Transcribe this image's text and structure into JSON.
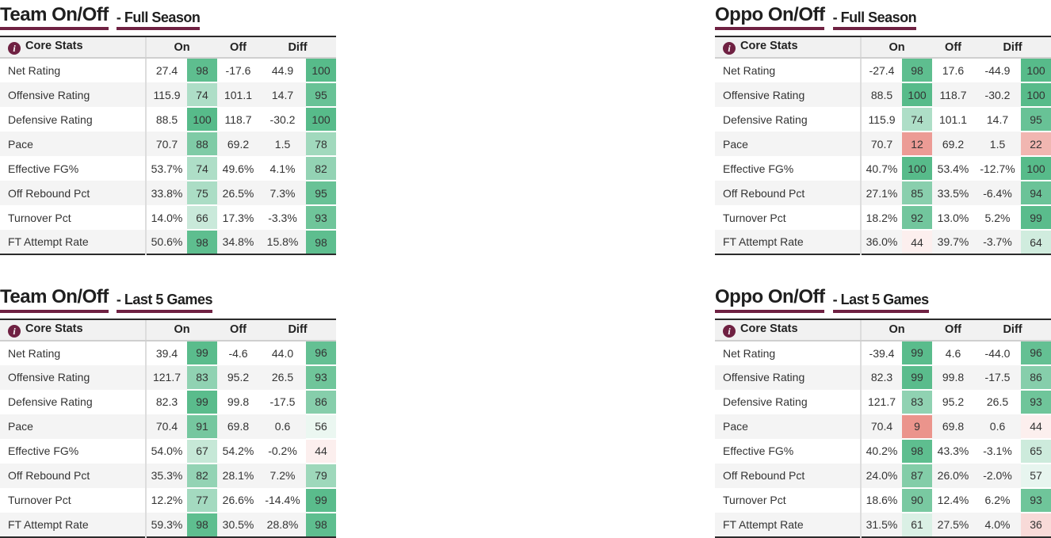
{
  "colors": {
    "accent_maroon": "#6f2142",
    "scale_positive_end": "#57bb8a",
    "scale_negative_end": "#e67c73",
    "scale_midpoint": "#ffffff",
    "header_bg": "#f1f1f1",
    "row_stripe": "#f4f4f4",
    "table_border_dark": "#2b2b2b"
  },
  "columns": {
    "info_glyph": "i",
    "stats": "Core Stats",
    "on": "On",
    "off": "Off",
    "diff": "Diff"
  },
  "tables": [
    {
      "title_main": "Team On/Off",
      "title_sub": "- Full Season",
      "rows": [
        {
          "name": "Net Rating",
          "on": "27.4",
          "on_pct": 98,
          "off": "-17.6",
          "diff": "44.9",
          "diff_pct": 100
        },
        {
          "name": "Offensive Rating",
          "on": "115.9",
          "on_pct": 74,
          "off": "101.1",
          "diff": "14.7",
          "diff_pct": 95
        },
        {
          "name": "Defensive Rating",
          "on": "88.5",
          "on_pct": 100,
          "off": "118.7",
          "diff": "-30.2",
          "diff_pct": 100
        },
        {
          "name": "Pace",
          "on": "70.7",
          "on_pct": 88,
          "off": "69.2",
          "diff": "1.5",
          "diff_pct": 78
        },
        {
          "name": "Effective FG%",
          "on": "53.7%",
          "on_pct": 74,
          "off": "49.6%",
          "diff": "4.1%",
          "diff_pct": 82
        },
        {
          "name": "Off Rebound Pct",
          "on": "33.8%",
          "on_pct": 75,
          "off": "26.5%",
          "diff": "7.3%",
          "diff_pct": 95
        },
        {
          "name": "Turnover Pct",
          "on": "14.0%",
          "on_pct": 66,
          "off": "17.3%",
          "diff": "-3.3%",
          "diff_pct": 93
        },
        {
          "name": "FT Attempt Rate",
          "on": "50.6%",
          "on_pct": 98,
          "off": "34.8%",
          "diff": "15.8%",
          "diff_pct": 98
        }
      ]
    },
    {
      "title_main": "Oppo On/Off",
      "title_sub": "- Full Season",
      "rows": [
        {
          "name": "Net Rating",
          "on": "-27.4",
          "on_pct": 98,
          "off": "17.6",
          "diff": "-44.9",
          "diff_pct": 100
        },
        {
          "name": "Offensive Rating",
          "on": "88.5",
          "on_pct": 100,
          "off": "118.7",
          "diff": "-30.2",
          "diff_pct": 100
        },
        {
          "name": "Defensive Rating",
          "on": "115.9",
          "on_pct": 74,
          "off": "101.1",
          "diff": "14.7",
          "diff_pct": 95
        },
        {
          "name": "Pace",
          "on": "70.7",
          "on_pct": 12,
          "off": "69.2",
          "diff": "1.5",
          "diff_pct": 22
        },
        {
          "name": "Effective FG%",
          "on": "40.7%",
          "on_pct": 100,
          "off": "53.4%",
          "diff": "-12.7%",
          "diff_pct": 100
        },
        {
          "name": "Off Rebound Pct",
          "on": "27.1%",
          "on_pct": 85,
          "off": "33.5%",
          "diff": "-6.4%",
          "diff_pct": 94
        },
        {
          "name": "Turnover Pct",
          "on": "18.2%",
          "on_pct": 92,
          "off": "13.0%",
          "diff": "5.2%",
          "diff_pct": 99
        },
        {
          "name": "FT Attempt Rate",
          "on": "36.0%",
          "on_pct": 44,
          "off": "39.7%",
          "diff": "-3.7%",
          "diff_pct": 64
        }
      ]
    },
    {
      "title_main": "Team On/Off",
      "title_sub": "- Last 5 Games",
      "rows": [
        {
          "name": "Net Rating",
          "on": "39.4",
          "on_pct": 99,
          "off": "-4.6",
          "diff": "44.0",
          "diff_pct": 96
        },
        {
          "name": "Offensive Rating",
          "on": "121.7",
          "on_pct": 83,
          "off": "95.2",
          "diff": "26.5",
          "diff_pct": 93
        },
        {
          "name": "Defensive Rating",
          "on": "82.3",
          "on_pct": 99,
          "off": "99.8",
          "diff": "-17.5",
          "diff_pct": 86
        },
        {
          "name": "Pace",
          "on": "70.4",
          "on_pct": 91,
          "off": "69.8",
          "diff": "0.6",
          "diff_pct": 56
        },
        {
          "name": "Effective FG%",
          "on": "54.0%",
          "on_pct": 67,
          "off": "54.2%",
          "diff": "-0.2%",
          "diff_pct": 44
        },
        {
          "name": "Off Rebound Pct",
          "on": "35.3%",
          "on_pct": 82,
          "off": "28.1%",
          "diff": "7.2%",
          "diff_pct": 79
        },
        {
          "name": "Turnover Pct",
          "on": "12.2%",
          "on_pct": 77,
          "off": "26.6%",
          "diff": "-14.4%",
          "diff_pct": 99
        },
        {
          "name": "FT Attempt Rate",
          "on": "59.3%",
          "on_pct": 98,
          "off": "30.5%",
          "diff": "28.8%",
          "diff_pct": 98
        }
      ]
    },
    {
      "title_main": "Oppo On/Off",
      "title_sub": "- Last 5 Games",
      "rows": [
        {
          "name": "Net Rating",
          "on": "-39.4",
          "on_pct": 99,
          "off": "4.6",
          "diff": "-44.0",
          "diff_pct": 96
        },
        {
          "name": "Offensive Rating",
          "on": "82.3",
          "on_pct": 99,
          "off": "99.8",
          "diff": "-17.5",
          "diff_pct": 86
        },
        {
          "name": "Defensive Rating",
          "on": "121.7",
          "on_pct": 83,
          "off": "95.2",
          "diff": "26.5",
          "diff_pct": 93
        },
        {
          "name": "Pace",
          "on": "70.4",
          "on_pct": 9,
          "off": "69.8",
          "diff": "0.6",
          "diff_pct": 44
        },
        {
          "name": "Effective FG%",
          "on": "40.2%",
          "on_pct": 98,
          "off": "43.3%",
          "diff": "-3.1%",
          "diff_pct": 65
        },
        {
          "name": "Off Rebound Pct",
          "on": "24.0%",
          "on_pct": 87,
          "off": "26.0%",
          "diff": "-2.0%",
          "diff_pct": 57
        },
        {
          "name": "Turnover Pct",
          "on": "18.6%",
          "on_pct": 90,
          "off": "12.4%",
          "diff": "6.2%",
          "diff_pct": 93
        },
        {
          "name": "FT Attempt Rate",
          "on": "31.5%",
          "on_pct": 61,
          "off": "27.5%",
          "diff": "4.0%",
          "diff_pct": 36
        }
      ]
    }
  ]
}
